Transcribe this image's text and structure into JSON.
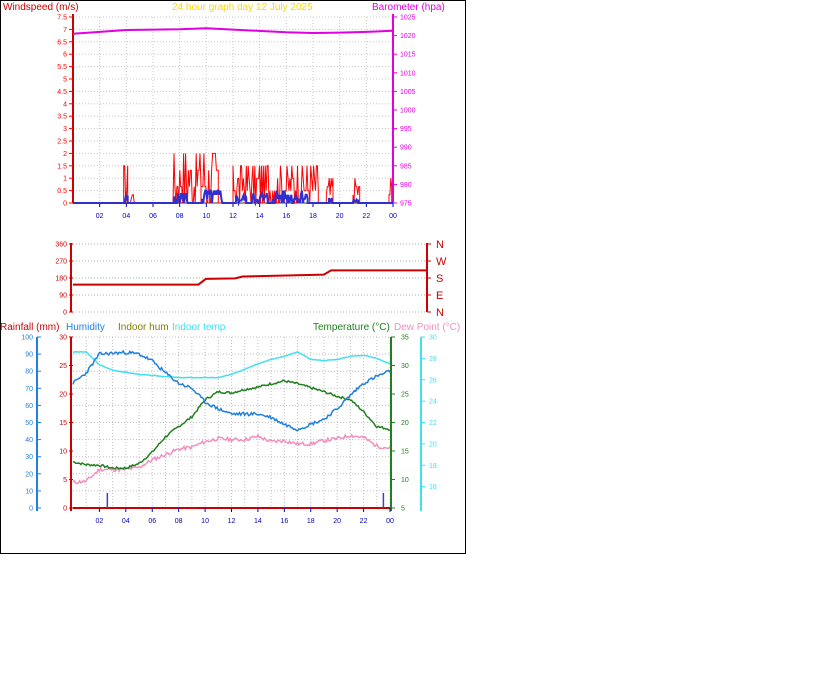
{
  "header": {
    "windspeed_label": "Windspeed (m/s)",
    "title": "24 hour graph day   12 July 2025",
    "barometer_label": "Barometer (hpa)"
  },
  "colors": {
    "wind": "#ff0000",
    "gust": "#3030d0",
    "barometer": "#e000e0",
    "title": "#ffd700",
    "direction": "#cc0000",
    "rainfall": "#cc0000",
    "humidity": "#2080e0",
    "indoor_hum": "#808000",
    "indoor_temp": "#40e0f0",
    "temperature": "#208020",
    "dew_point": "#f090c0",
    "xtick": "#0000c0"
  },
  "chart_data": [
    {
      "type": "line",
      "name": "wind-barometer",
      "x_ticks": [
        "02",
        "04",
        "06",
        "08",
        "10",
        "12",
        "14",
        "16",
        "18",
        "20",
        "22",
        "00"
      ],
      "y_left": {
        "label": "Windspeed (m/s)",
        "range": [
          0,
          7.5
        ],
        "ticks": [
          "0",
          "0.5",
          "1",
          "1.5",
          "2",
          "2.5",
          "3",
          "3.5",
          "4",
          "4.5",
          "5",
          "5.5",
          "6",
          "6.5",
          "7",
          "7.5"
        ]
      },
      "y_right": {
        "label": "Barometer (hpa)",
        "range": [
          975,
          1025
        ],
        "ticks": [
          "975",
          "980",
          "985",
          "990",
          "995",
          "1000",
          "1005",
          "1010",
          "1015",
          "1020",
          "1025"
        ]
      },
      "barometer": {
        "x": [
          0,
          4,
          8,
          10,
          12,
          16,
          18,
          20,
          22,
          24
        ],
        "y": [
          1020.5,
          1021.5,
          1021.7,
          1022.0,
          1021.6,
          1020.9,
          1020.7,
          1020.8,
          1021.0,
          1021.3
        ]
      },
      "wind_bursts": [
        [
          3.8,
          4.1,
          1.5
        ],
        [
          4.3,
          4.6,
          0.5
        ],
        [
          7.5,
          9.6,
          2.0
        ],
        [
          9.6,
          10.9,
          2.0
        ],
        [
          12.0,
          18.4,
          1.5
        ],
        [
          19.0,
          19.5,
          1.0
        ],
        [
          21.0,
          21.5,
          1.0
        ],
        [
          23.7,
          23.9,
          1.0
        ]
      ],
      "gust_bursts": [
        [
          3.9,
          4.1,
          0.3
        ],
        [
          7.6,
          8.6,
          0.4
        ],
        [
          9.7,
          11.2,
          0.5
        ],
        [
          12.2,
          13.0,
          0.3
        ],
        [
          13.4,
          14.6,
          0.4
        ],
        [
          15.0,
          17.6,
          0.5
        ],
        [
          19.2,
          19.4,
          0.2
        ],
        [
          21.0,
          21.4,
          0.2
        ]
      ]
    },
    {
      "type": "line",
      "name": "wind-direction",
      "y_left": {
        "range": [
          0,
          360
        ],
        "ticks": [
          "0",
          "90",
          "180",
          "270",
          "360"
        ]
      },
      "y_right_ticks": [
        "N",
        "W",
        "S",
        "E",
        "N"
      ],
      "direction": {
        "x": [
          0,
          8.5,
          9.0,
          11.0,
          11.5,
          17.0,
          17.5,
          24.0
        ],
        "y": [
          145,
          145,
          175,
          178,
          188,
          198,
          220,
          220
        ]
      }
    },
    {
      "type": "line",
      "name": "temperature-humidity",
      "x_ticks": [
        "02",
        "04",
        "06",
        "08",
        "10",
        "12",
        "14",
        "16",
        "18",
        "20",
        "22",
        "00"
      ],
      "legend": [
        "Rainfall (mm)",
        "Humidity",
        "Indoor hum",
        "Indoor temp",
        "Temperature (°C)",
        "Dew Point (°C)"
      ],
      "y_rain": {
        "range": [
          0,
          30
        ],
        "ticks": [
          "0",
          "5",
          "10",
          "15",
          "20",
          "25",
          "30"
        ]
      },
      "y_hum": {
        "range": [
          0,
          100
        ],
        "ticks": [
          "0",
          "10",
          "20",
          "30",
          "40",
          "50",
          "60",
          "70",
          "80",
          "90",
          "100"
        ]
      },
      "y_temp": {
        "range": [
          5,
          35
        ],
        "ticks": [
          "5",
          "10",
          "15",
          "20",
          "25",
          "30",
          "35"
        ]
      },
      "y_dew": {
        "range": [
          14,
          30
        ],
        "ticks": [
          "16",
          "18",
          "20",
          "22",
          "24",
          "26",
          "28",
          "30"
        ]
      },
      "humidity": {
        "x": [
          0,
          1,
          2,
          4,
          5,
          6,
          7,
          8,
          9,
          10,
          11,
          12,
          13,
          14,
          15,
          16,
          17,
          18,
          19,
          20,
          21,
          22,
          23,
          24
        ],
        "y": [
          73,
          79,
          90,
          91,
          90,
          86,
          79,
          73,
          70,
          62,
          58,
          55,
          55,
          55,
          53,
          49,
          46,
          49,
          52,
          58,
          66,
          73,
          77,
          80
        ]
      },
      "temperature": {
        "x": [
          0,
          1,
          2,
          3,
          4,
          5,
          6,
          7,
          8,
          9,
          10,
          11,
          12,
          13,
          14,
          15,
          16,
          17,
          18,
          19,
          20,
          21,
          22,
          23,
          24
        ],
        "y": [
          13.1,
          12.6,
          12.5,
          12.0,
          12.0,
          12.8,
          14.8,
          17.5,
          19.3,
          21.0,
          24.0,
          25.4,
          25.2,
          25.8,
          26.2,
          26.8,
          27.3,
          26.8,
          26.1,
          25.4,
          24.6,
          24.0,
          21.9,
          19.3,
          18.8
        ]
      },
      "indoor_temp": {
        "x": [
          0,
          1,
          2,
          3,
          4,
          5,
          6,
          7,
          8,
          9,
          10,
          11,
          12,
          13,
          14,
          15,
          16,
          17,
          18,
          19,
          20,
          21,
          22,
          23,
          24
        ],
        "y": [
          28.6,
          28.6,
          27.4,
          26.9,
          26.7,
          26.5,
          26.4,
          26.3,
          26.2,
          26.2,
          26.2,
          26.2,
          26.5,
          27.0,
          27.5,
          27.9,
          28.2,
          28.6,
          27.9,
          27.8,
          27.9,
          28.2,
          28.3,
          28.0,
          27.5
        ]
      },
      "dew_point": {
        "x": [
          0,
          1,
          2,
          3,
          4,
          5,
          6,
          7,
          8,
          9,
          10,
          11,
          12,
          13,
          14,
          15,
          16,
          17,
          18,
          19,
          20,
          21,
          22,
          23,
          24
        ],
        "y": [
          16.4,
          16.5,
          17.6,
          17.6,
          17.6,
          17.8,
          18.5,
          19.0,
          19.5,
          19.7,
          20.2,
          20.5,
          20.4,
          20.4,
          20.7,
          20.2,
          20.3,
          20.0,
          20.0,
          20.3,
          20.5,
          20.8,
          20.6,
          19.8,
          19.6
        ]
      },
      "rain_ticks": [
        2.6,
        23.5
      ]
    }
  ]
}
